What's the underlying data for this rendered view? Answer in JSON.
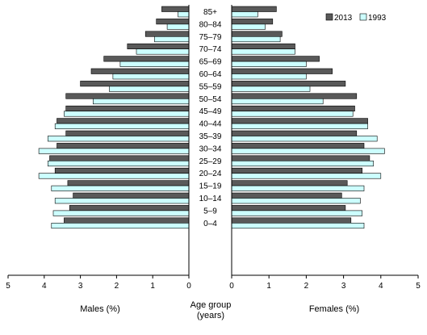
{
  "chart_data": {
    "type": "bar",
    "orientation": "horizontal",
    "layout": "population-pyramid",
    "title": "",
    "categories": [
      "0–4",
      "5–9",
      "10–14",
      "15–19",
      "20–24",
      "25–29",
      "30–34",
      "35–39",
      "40–44",
      "45–49",
      "50–54",
      "55–59",
      "60–64",
      "65–69",
      "70–74",
      "75–79",
      "80–84",
      "85+"
    ],
    "category_axis_label": [
      "Age group",
      "(years)"
    ],
    "left_panel": {
      "xlabel": "Males (%)",
      "xlim": [
        0,
        5
      ],
      "ticks": [
        "0",
        "1",
        "2",
        "3",
        "4",
        "5"
      ],
      "series": [
        {
          "name": "2013",
          "values": [
            3.45,
            3.3,
            3.2,
            3.35,
            3.7,
            3.85,
            3.65,
            3.4,
            3.65,
            3.4,
            3.4,
            3.0,
            2.7,
            2.35,
            1.7,
            1.2,
            0.9,
            0.75
          ]
        },
        {
          "name": "1993",
          "values": [
            3.8,
            3.75,
            3.7,
            3.8,
            4.15,
            3.9,
            4.15,
            3.9,
            3.7,
            3.45,
            2.65,
            2.2,
            2.1,
            1.9,
            1.45,
            0.95,
            0.6,
            0.3
          ]
        }
      ]
    },
    "right_panel": {
      "xlabel": "Females (%)",
      "xlim": [
        0,
        5
      ],
      "ticks": [
        "0",
        "1",
        "2",
        "3",
        "4",
        "5"
      ],
      "series": [
        {
          "name": "2013",
          "values": [
            3.2,
            3.05,
            2.95,
            3.1,
            3.5,
            3.7,
            3.55,
            3.35,
            3.65,
            3.3,
            3.35,
            3.05,
            2.7,
            2.35,
            1.7,
            1.35,
            1.1,
            1.2
          ]
        },
        {
          "name": "1993",
          "values": [
            3.55,
            3.5,
            3.45,
            3.55,
            4.0,
            3.8,
            4.1,
            3.9,
            3.65,
            3.25,
            2.45,
            2.1,
            2.0,
            2.0,
            1.7,
            1.3,
            0.9,
            0.7
          ]
        }
      ]
    },
    "legend": {
      "placement": "top-right",
      "entries": [
        {
          "name": "2013",
          "color": "#595959"
        },
        {
          "name": "1993",
          "color": "#ccffff"
        }
      ]
    },
    "colors": {
      "bar_2013": "#595959",
      "bar_1993": "#ccffff",
      "outline": "#000000"
    },
    "grid": false
  }
}
